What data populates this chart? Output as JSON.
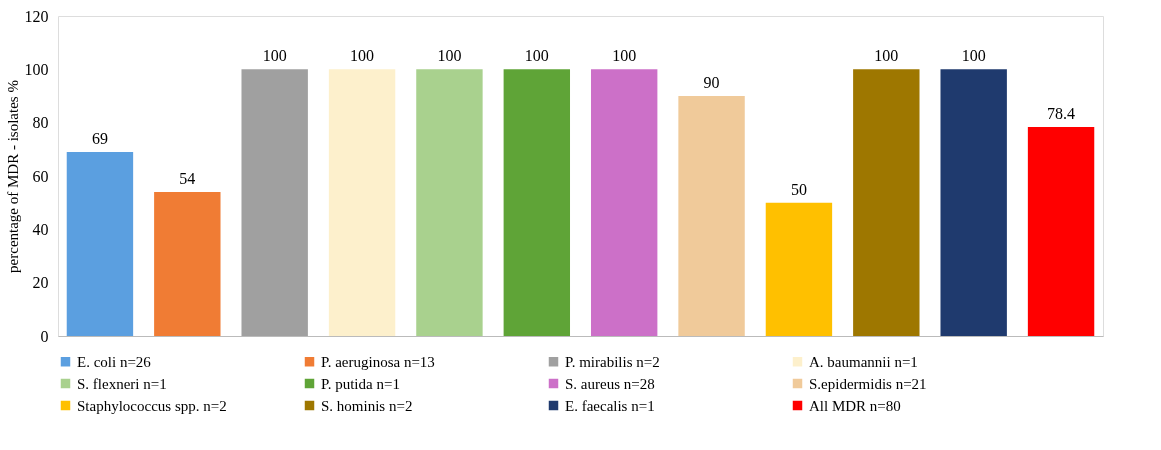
{
  "chart_data": {
    "type": "bar",
    "ylabel": "percentage of MDR - isolates %",
    "categories": [
      null
    ],
    "series": [
      {
        "name": "E. coli n=26",
        "color": "#5b9fe0",
        "values": [
          69
        ]
      },
      {
        "name": "P. aeruginosa n=13",
        "color": "#f07c34",
        "values": [
          54
        ]
      },
      {
        "name": "P. mirabilis n=2",
        "color": "#a0a0a0",
        "values": [
          100
        ]
      },
      {
        "name": "A. baumannii n=1",
        "color": "#fdf0cc",
        "values": [
          100
        ]
      },
      {
        "name": "S. flexneri n=1",
        "color": "#a9d18e",
        "values": [
          100
        ]
      },
      {
        "name": "P. putida n=1",
        "color": "#5fa437",
        "values": [
          100
        ]
      },
      {
        "name": "S. aureus n=28",
        "color": "#cc70c8",
        "values": [
          100
        ]
      },
      {
        "name": "S.epidermidis n=21",
        "color": "#f0ca9a",
        "values": [
          90
        ]
      },
      {
        "name": "Staphylococcus spp. n=2",
        "color": "#ffc000",
        "values": [
          50
        ]
      },
      {
        "name": "S. hominis n=2",
        "color": "#9e7700",
        "values": [
          100
        ]
      },
      {
        "name": "E. faecalis n=1",
        "color": "#1f3a6e",
        "values": [
          100
        ]
      },
      {
        "name": "All MDR n=80",
        "color": "#ff0000",
        "values": [
          78.4
        ]
      }
    ],
    "ylim": [
      0,
      120
    ],
    "yticks": [
      0,
      20,
      40,
      60,
      80,
      100,
      120
    ],
    "grid": false,
    "legend": "bottom",
    "data_labels": true,
    "tick_labels": "y"
  }
}
